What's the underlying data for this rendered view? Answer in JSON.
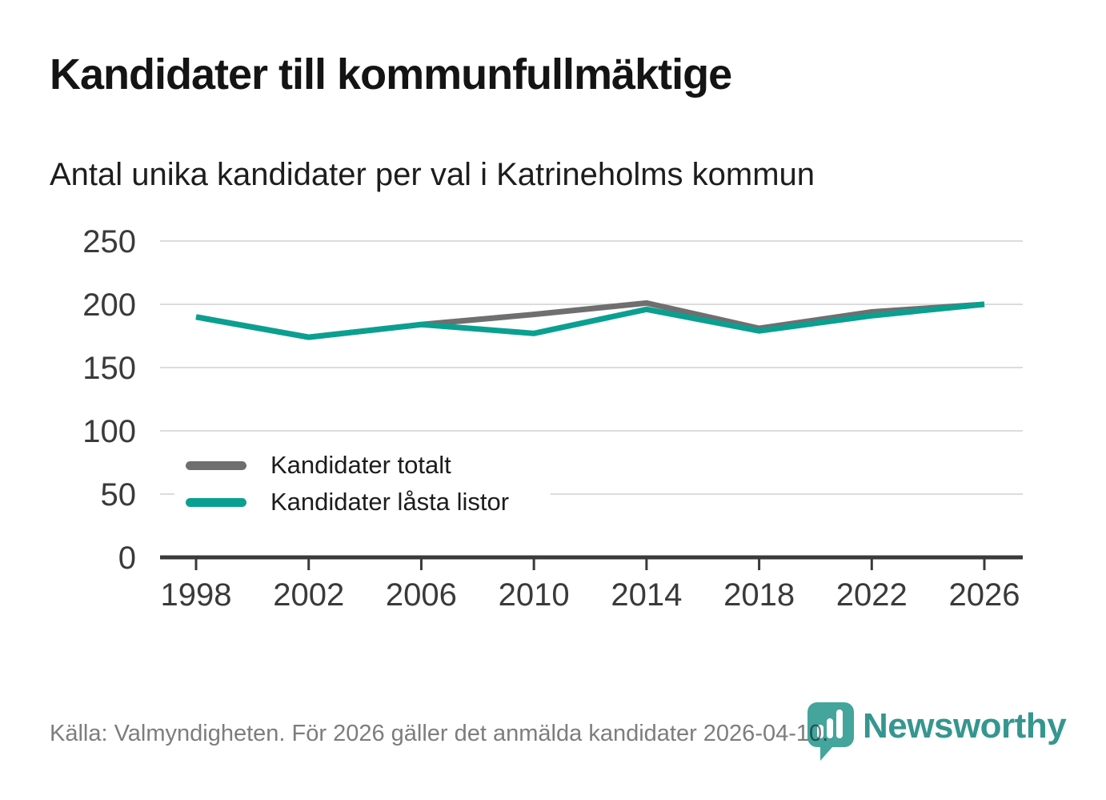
{
  "header": {
    "title": "Kandidater till kommunfullmäktige",
    "subtitle": "Antal unika kandidater per val i Katrineholms kommun"
  },
  "chart_data": {
    "type": "line",
    "title": "Kandidater till kommunfullmäktige",
    "subtitle": "Antal unika kandidater per val i Katrineholms kommun",
    "x": [
      1998,
      2002,
      2006,
      2010,
      2014,
      2018,
      2022,
      2026
    ],
    "series": [
      {
        "name": "Kandidater totalt",
        "color": "#6f6f6f",
        "values": [
          190,
          174,
          184,
          192,
          201,
          181,
          194,
          200
        ]
      },
      {
        "name": "Kandidater låsta listor",
        "color": "#0aa091",
        "values": [
          190,
          174,
          184,
          177,
          196,
          179,
          191,
          200
        ]
      }
    ],
    "ylim": [
      0,
      250
    ],
    "yticks": [
      0,
      50,
      100,
      150,
      200,
      250
    ],
    "grid": true,
    "legend_position": "inside-bottom-left",
    "axis_color": "#3a3a3a",
    "gridline_color": "#dcdcdc",
    "tick_label_color": "#3a3a3a"
  },
  "footer": {
    "source_text": "Källa: Valmyndigheten. För 2026 gäller det anmälda kandidater 2026-04-10.",
    "brand": "Newsworthy",
    "brand_color": "#35968f",
    "logo_pin_color": "#43a59c"
  }
}
